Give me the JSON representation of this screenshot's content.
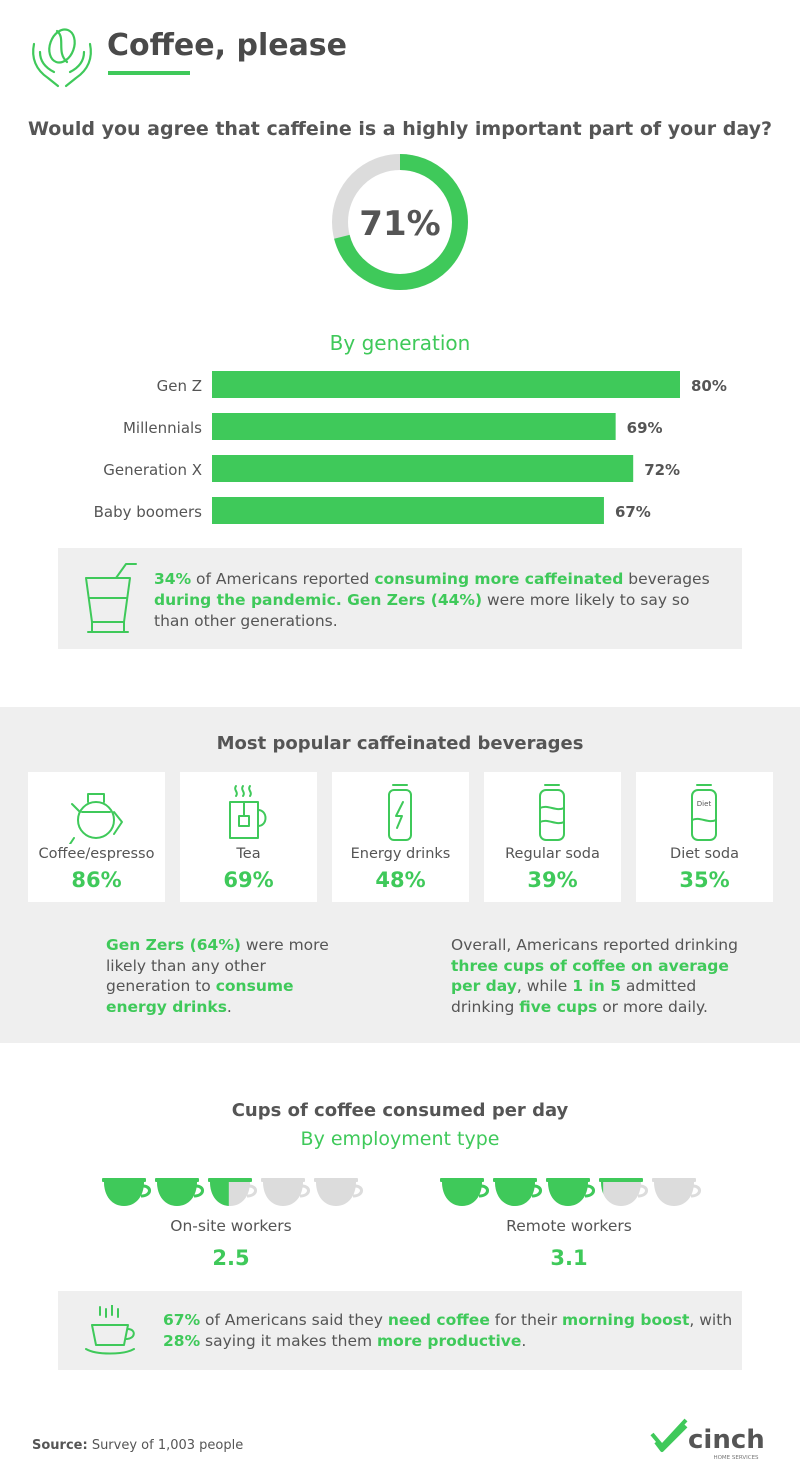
{
  "header": {
    "title": "Coffee, please"
  },
  "question": {
    "text": "Would you agree that caffeine is a highly important part of your day?",
    "value_label": "71%",
    "value": 71
  },
  "generation": {
    "heading": "By generation"
  },
  "chart_data": [
    {
      "type": "pie",
      "subtype": "donut",
      "title": "Would you agree that caffeine is a highly important part of your day?",
      "values": [
        71,
        29
      ],
      "center_label": "71%",
      "colors": [
        "#3fc95a",
        "#dcdcdc"
      ]
    },
    {
      "type": "bar",
      "orientation": "horizontal",
      "title": "By generation",
      "categories": [
        "Gen Z",
        "Millennials",
        "Generation X",
        "Baby boomers"
      ],
      "values": [
        80,
        69,
        72,
        67
      ],
      "value_labels": [
        "80%",
        "69%",
        "72%",
        "67%"
      ],
      "color": "#3fc95a"
    },
    {
      "type": "bar",
      "title": "Most popular caffeinated beverages",
      "categories": [
        "Coffee/espresso",
        "Tea",
        "Energy drinks",
        "Regular soda",
        "Diet soda"
      ],
      "values": [
        86,
        69,
        48,
        39,
        35
      ]
    },
    {
      "type": "bar",
      "title": "Cups of coffee consumed per day",
      "subtitle": "By employment type",
      "categories": [
        "On-site workers",
        "Remote workers"
      ],
      "values": [
        2.5,
        3.1
      ],
      "max_cups": 5
    }
  ],
  "box1": {
    "icon": "glass-icon",
    "parts": [
      {
        "t": "34%",
        "g": true
      },
      {
        "t": " of Americans reported ",
        "g": false
      },
      {
        "t": "consuming more caffeinated",
        "g": true
      },
      {
        "t": " beverages ",
        "g": false
      },
      {
        "t": "during the pandemic. Gen Zers (44%)",
        "g": true
      },
      {
        "t": " were more likely to say so than other generations.",
        "g": false
      }
    ]
  },
  "beverages": {
    "heading": "Most popular caffeinated beverages",
    "items": [
      {
        "label": "Coffee/espresso",
        "value": "86%",
        "icon": "coffee-pot-icon"
      },
      {
        "label": "Tea",
        "value": "69%",
        "icon": "tea-cup-icon"
      },
      {
        "label": "Energy drinks",
        "value": "48%",
        "icon": "energy-can-icon"
      },
      {
        "label": "Regular soda",
        "value": "39%",
        "icon": "soda-can-icon"
      },
      {
        "label": "Diet soda",
        "value": "35%",
        "icon": "diet-soda-can-icon",
        "can_text": "Diet"
      }
    ]
  },
  "note_left": {
    "parts": [
      {
        "t": "Gen Zers (64%)",
        "g": true
      },
      {
        "t": " were more likely than any other generation to ",
        "g": false
      },
      {
        "t": "consume energy drinks",
        "g": true
      },
      {
        "t": ".",
        "g": false
      }
    ]
  },
  "note_right": {
    "parts": [
      {
        "t": "Overall, Americans reported drinking ",
        "g": false
      },
      {
        "t": "three cups of coffee on average per day",
        "g": true
      },
      {
        "t": ", while ",
        "g": false
      },
      {
        "t": "1 in 5",
        "g": true
      },
      {
        "t": " admitted drinking ",
        "g": false
      },
      {
        "t": "five cups",
        "g": true
      },
      {
        "t": " or more daily.",
        "g": false
      }
    ]
  },
  "cups": {
    "heading": "Cups of coffee consumed per day",
    "subheading": "By employment type",
    "onsite": {
      "label": "On-site workers",
      "value_label": "2.5",
      "value": 2.5
    },
    "remote": {
      "label": "Remote workers",
      "value_label": "3.1",
      "value": 3.1
    }
  },
  "box2": {
    "icon": "steaming-mug-icon",
    "parts": [
      {
        "t": "67%",
        "g": true
      },
      {
        "t": " of Americans said they ",
        "g": false
      },
      {
        "t": "need coffee",
        "g": true
      },
      {
        "t": " for their ",
        "g": false
      },
      {
        "t": "morning boost",
        "g": true
      },
      {
        "t": ", with ",
        "g": false
      },
      {
        "t": "28%",
        "g": true
      },
      {
        "t": " saying it makes them ",
        "g": false
      },
      {
        "t": "more productive",
        "g": true
      },
      {
        "t": ".",
        "g": false
      }
    ]
  },
  "footer": {
    "source_label": "Source:",
    "source_text": " Survey of 1,003 people",
    "brand": "cinch",
    "brand_sub": "HOME SERVICES"
  },
  "colors": {
    "accent": "#3fc95a",
    "track": "#dcdcdc",
    "panel": "#efefef",
    "text": "#555555"
  }
}
